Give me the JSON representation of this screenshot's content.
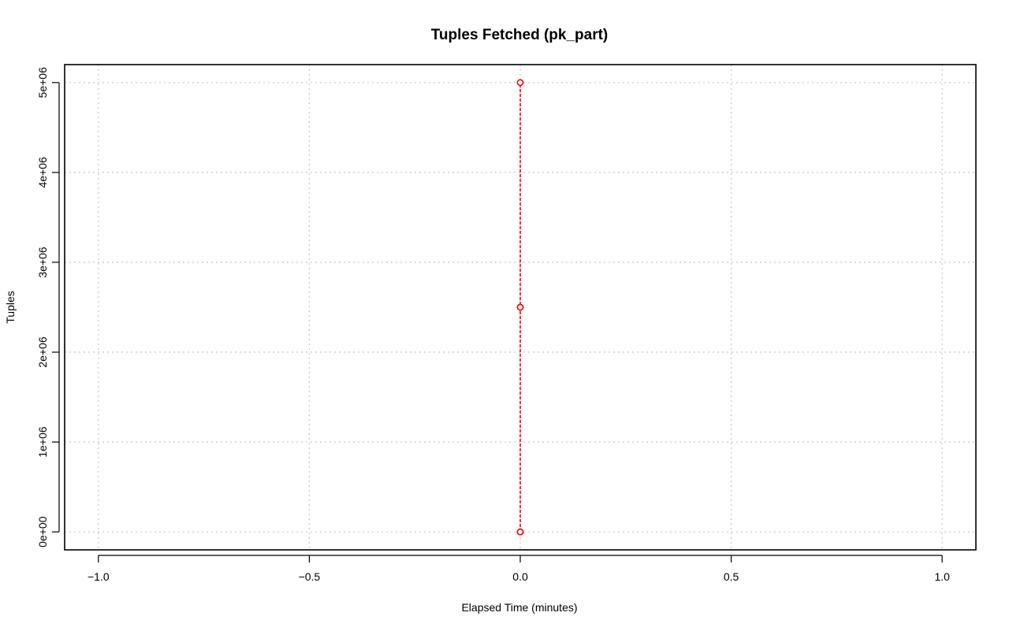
{
  "chart_data": {
    "type": "line",
    "title": "Tuples Fetched (pk_part)",
    "xlabel": "Elapsed Time (minutes)",
    "ylabel": "Tuples",
    "xlim": [
      -1.08,
      1.08
    ],
    "ylim": [
      -200000,
      5200000
    ],
    "x_ticks": [
      -1.0,
      -0.5,
      0.0,
      0.5,
      1.0
    ],
    "x_tick_labels": [
      "−1.0",
      "−0.5",
      "0.0",
      "0.5",
      "1.0"
    ],
    "y_ticks": [
      0,
      1000000,
      2000000,
      3000000,
      4000000,
      5000000
    ],
    "y_tick_labels": [
      "0e+00",
      "1e+06",
      "2e+06",
      "3e+06",
      "4e+06",
      "5e+06"
    ],
    "grid": true,
    "legend": "none",
    "series": [
      {
        "color": "#ff0000",
        "line_style": "dashed",
        "marker": "open-circle",
        "x": [
          0,
          0,
          0,
          0,
          0
        ],
        "y": [
          0,
          0,
          2500000,
          2500000,
          5000000
        ]
      }
    ]
  }
}
